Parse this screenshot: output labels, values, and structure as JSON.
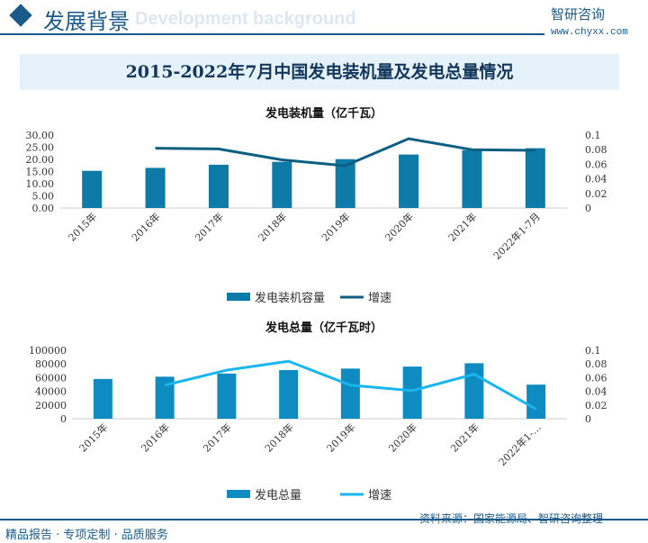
{
  "header": {
    "title": "发展背景",
    "subtitle_bg": "Development background",
    "logo": "智研咨询",
    "url": "www.chyxx.com"
  },
  "main_title": "2015-2022年7月中国发电装机量及发电总量情况",
  "chart_data": [
    {
      "type": "bar+line",
      "title": "发电装机量（亿千瓦）",
      "categories": [
        "2015年",
        "2016年",
        "2017年",
        "2018年",
        "2019年",
        "2020年",
        "2021年",
        "2022年1-7月"
      ],
      "series": [
        {
          "name": "发电装机容量",
          "type": "bar",
          "axis": "left",
          "color": "#0e7aa8",
          "values": [
            15.3,
            16.5,
            17.8,
            19.0,
            20.1,
            22.0,
            23.8,
            24.6
          ]
        },
        {
          "name": "增速",
          "type": "line",
          "axis": "right",
          "color": "#0d5f82",
          "values": [
            null,
            0.082,
            0.081,
            0.066,
            0.058,
            0.095,
            0.08,
            0.079
          ]
        }
      ],
      "yticks": [
        "0.00",
        "5.00",
        "10.00",
        "15.00",
        "20.00",
        "25.00",
        "30.00"
      ],
      "ylim": [
        0,
        30
      ],
      "y2ticks": [
        "0",
        "0.02",
        "0.04",
        "0.06",
        "0.08",
        "0.1"
      ],
      "y2lim": [
        0,
        0.1
      ],
      "legend": "bottom"
    },
    {
      "type": "bar+line",
      "title": "发电总量（亿千瓦时）",
      "categories": [
        "2015年",
        "2016年",
        "2017年",
        "2018年",
        "2019年",
        "2020年",
        "2021年",
        "2022年1-…"
      ],
      "series": [
        {
          "name": "发电总量",
          "type": "bar",
          "axis": "left",
          "color": "#0e8cc2",
          "values": [
            58100,
            61400,
            66000,
            71100,
            73300,
            76200,
            81100,
            49800
          ]
        },
        {
          "name": "增速",
          "type": "line",
          "axis": "right",
          "color": "#19b5ee",
          "values": [
            null,
            0.049,
            0.071,
            0.084,
            0.049,
            0.041,
            0.065,
            0.014
          ]
        }
      ],
      "yticks": [
        "0",
        "20000",
        "40000",
        "60000",
        "80000",
        "100000"
      ],
      "ylim": [
        0,
        100000
      ],
      "y2ticks": [
        "0",
        "0.02",
        "0.04",
        "0.06",
        "0.08",
        "0.1"
      ],
      "y2lim": [
        0,
        0.1
      ],
      "legend": "bottom"
    }
  ],
  "footer": {
    "left": "精品报告 · 专项定制 · 品质服务",
    "source": "资料来源：国家能源局、智研咨询整理"
  }
}
